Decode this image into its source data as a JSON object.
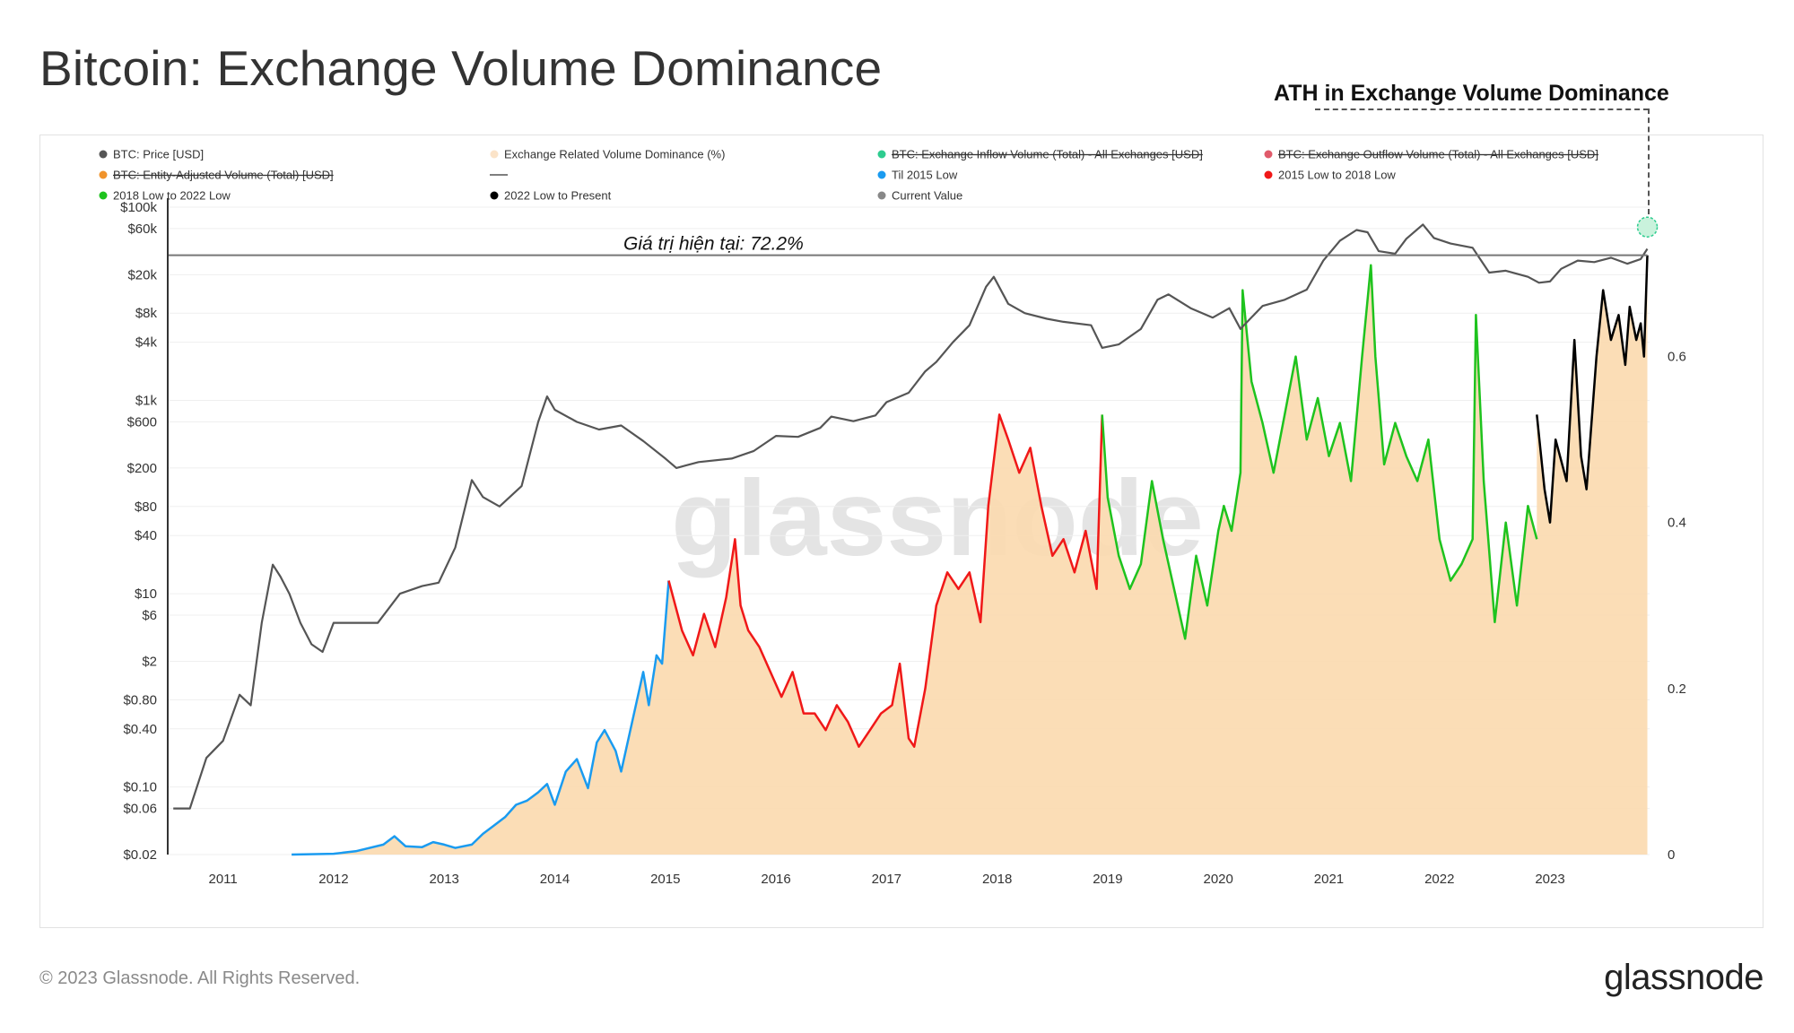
{
  "page": {
    "title": "Bitcoin: Exchange Volume Dominance",
    "ath_label": "ATH in Exchange Volume Dominance",
    "copyright": "© 2023 Glassnode. All Rights Reserved.",
    "logo": "glassnode",
    "watermark": "glassnode"
  },
  "chart_data": {
    "type": "line",
    "legend": [
      {
        "label": "BTC: Price [USD]",
        "color": "#555555",
        "struck": false
      },
      {
        "label": "Exchange Related Volume Dominance (%)",
        "color": "#fbe3c8",
        "struck": false
      },
      {
        "label": "BTC: Exchange Inflow Volume (Total) - All Exchanges [USD]",
        "color": "#2ecc8f",
        "struck": true
      },
      {
        "label": "BTC: Exchange Outflow Volume (Total) - All Exchanges [USD]",
        "color": "#e05a6a",
        "struck": true
      },
      {
        "label": "BTC: Entity-Adjusted Volume (Total) [USD]",
        "color": "#f0932b",
        "struck": true
      },
      {
        "label": "",
        "color": "#555555",
        "struck": false,
        "marker": "line"
      },
      {
        "label": "Til 2015 Low",
        "color": "#1a9bf0",
        "struck": false
      },
      {
        "label": "2015 Low to 2018 Low",
        "color": "#f01818",
        "struck": false
      },
      {
        "label": "2018 Low to 2022 Low",
        "color": "#1ec31e",
        "struck": false
      },
      {
        "label": "2022 Low to Present",
        "color": "#000000",
        "struck": false
      },
      {
        "label": "Current Value",
        "color": "#888888",
        "struck": false
      }
    ],
    "x_ticks": [
      "2011",
      "2012",
      "2013",
      "2014",
      "2015",
      "2016",
      "2017",
      "2018",
      "2019",
      "2020",
      "2021",
      "2022",
      "2023"
    ],
    "x_range": [
      2010.5,
      2023.9
    ],
    "y_left_ticks": [
      "$100k",
      "$60k",
      "$20k",
      "$8k",
      "$4k",
      "$1k",
      "$600",
      "$200",
      "$80",
      "$40",
      "$10",
      "$6",
      "$2",
      "$0.80",
      "$0.40",
      "$0.10",
      "$0.06",
      "$0.02"
    ],
    "y_left_range": [
      0.02,
      100000
    ],
    "y_left_scale": "log",
    "y_right_ticks": [
      "0",
      "0.2",
      "0.4",
      "0.6"
    ],
    "y_right_range": [
      0,
      0.78
    ],
    "current_value_label": "Giá trị hiện tại: 72.2%",
    "current_value": 0.722,
    "ath_marker": {
      "x": 2023.88,
      "y": 0.756
    },
    "price_series": {
      "name": "BTC: Price [USD]",
      "color": "#555555",
      "points": [
        [
          2010.55,
          0.06
        ],
        [
          2010.7,
          0.06
        ],
        [
          2010.85,
          0.2
        ],
        [
          2011.0,
          0.3
        ],
        [
          2011.15,
          0.9
        ],
        [
          2011.25,
          0.7
        ],
        [
          2011.35,
          5
        ],
        [
          2011.45,
          20
        ],
        [
          2011.52,
          15
        ],
        [
          2011.6,
          10
        ],
        [
          2011.7,
          5
        ],
        [
          2011.8,
          3
        ],
        [
          2011.9,
          2.5
        ],
        [
          2012.0,
          5
        ],
        [
          2012.2,
          5
        ],
        [
          2012.4,
          5
        ],
        [
          2012.6,
          10
        ],
        [
          2012.8,
          12
        ],
        [
          2012.95,
          13
        ],
        [
          2013.1,
          30
        ],
        [
          2013.25,
          150
        ],
        [
          2013.35,
          100
        ],
        [
          2013.5,
          80
        ],
        [
          2013.7,
          130
        ],
        [
          2013.85,
          600
        ],
        [
          2013.93,
          1100
        ],
        [
          2014.0,
          800
        ],
        [
          2014.2,
          600
        ],
        [
          2014.4,
          500
        ],
        [
          2014.6,
          550
        ],
        [
          2014.8,
          380
        ],
        [
          2015.0,
          250
        ],
        [
          2015.1,
          200
        ],
        [
          2015.3,
          230
        ],
        [
          2015.6,
          250
        ],
        [
          2015.8,
          300
        ],
        [
          2016.0,
          430
        ],
        [
          2016.2,
          420
        ],
        [
          2016.4,
          520
        ],
        [
          2016.5,
          680
        ],
        [
          2016.7,
          610
        ],
        [
          2016.9,
          700
        ],
        [
          2017.0,
          960
        ],
        [
          2017.2,
          1200
        ],
        [
          2017.35,
          2000
        ],
        [
          2017.45,
          2500
        ],
        [
          2017.6,
          4000
        ],
        [
          2017.75,
          6000
        ],
        [
          2017.9,
          15000
        ],
        [
          2017.97,
          19000
        ],
        [
          2018.1,
          10000
        ],
        [
          2018.25,
          8000
        ],
        [
          2018.45,
          7000
        ],
        [
          2018.6,
          6500
        ],
        [
          2018.85,
          6000
        ],
        [
          2018.95,
          3500
        ],
        [
          2019.1,
          3800
        ],
        [
          2019.3,
          5500
        ],
        [
          2019.45,
          11000
        ],
        [
          2019.55,
          12500
        ],
        [
          2019.75,
          9000
        ],
        [
          2019.95,
          7200
        ],
        [
          2020.1,
          9000
        ],
        [
          2020.2,
          5500
        ],
        [
          2020.4,
          9500
        ],
        [
          2020.6,
          11000
        ],
        [
          2020.8,
          14000
        ],
        [
          2020.95,
          28000
        ],
        [
          2021.1,
          45000
        ],
        [
          2021.25,
          58000
        ],
        [
          2021.35,
          55000
        ],
        [
          2021.45,
          35000
        ],
        [
          2021.6,
          33000
        ],
        [
          2021.7,
          47000
        ],
        [
          2021.85,
          66000
        ],
        [
          2021.95,
          48000
        ],
        [
          2022.1,
          42000
        ],
        [
          2022.3,
          38000
        ],
        [
          2022.45,
          21000
        ],
        [
          2022.6,
          22000
        ],
        [
          2022.8,
          19000
        ],
        [
          2022.9,
          16500
        ],
        [
          2023.0,
          17000
        ],
        [
          2023.1,
          23000
        ],
        [
          2023.25,
          28000
        ],
        [
          2023.4,
          27000
        ],
        [
          2023.55,
          30000
        ],
        [
          2023.7,
          26000
        ],
        [
          2023.82,
          29000
        ],
        [
          2023.88,
          37000
        ]
      ]
    },
    "dominance_series": [
      {
        "name": "Til 2015 Low",
        "color": "#1a9bf0",
        "points": [
          [
            2011.62,
            0.0
          ],
          [
            2012.0,
            0.001
          ],
          [
            2012.2,
            0.004
          ],
          [
            2012.45,
            0.012
          ],
          [
            2012.55,
            0.022
          ],
          [
            2012.65,
            0.01
          ],
          [
            2012.8,
            0.009
          ],
          [
            2012.9,
            0.015
          ],
          [
            2013.0,
            0.012
          ],
          [
            2013.1,
            0.008
          ],
          [
            2013.25,
            0.012
          ],
          [
            2013.35,
            0.025
          ],
          [
            2013.45,
            0.035
          ],
          [
            2013.55,
            0.045
          ],
          [
            2013.65,
            0.06
          ],
          [
            2013.75,
            0.065
          ],
          [
            2013.85,
            0.075
          ],
          [
            2013.93,
            0.085
          ],
          [
            2014.0,
            0.06
          ],
          [
            2014.1,
            0.1
          ],
          [
            2014.2,
            0.115
          ],
          [
            2014.3,
            0.08
          ],
          [
            2014.38,
            0.135
          ],
          [
            2014.45,
            0.15
          ],
          [
            2014.55,
            0.125
          ],
          [
            2014.6,
            0.1
          ],
          [
            2014.7,
            0.16
          ],
          [
            2014.8,
            0.22
          ],
          [
            2014.85,
            0.18
          ],
          [
            2014.92,
            0.24
          ],
          [
            2014.97,
            0.23
          ],
          [
            2015.03,
            0.33
          ]
        ]
      },
      {
        "name": "2015 Low to 2018 Low",
        "color": "#f01818",
        "points": [
          [
            2015.03,
            0.33
          ],
          [
            2015.15,
            0.27
          ],
          [
            2015.25,
            0.24
          ],
          [
            2015.35,
            0.29
          ],
          [
            2015.45,
            0.25
          ],
          [
            2015.55,
            0.31
          ],
          [
            2015.63,
            0.38
          ],
          [
            2015.68,
            0.3
          ],
          [
            2015.75,
            0.27
          ],
          [
            2015.85,
            0.25
          ],
          [
            2015.95,
            0.22
          ],
          [
            2016.05,
            0.19
          ],
          [
            2016.15,
            0.22
          ],
          [
            2016.25,
            0.17
          ],
          [
            2016.35,
            0.17
          ],
          [
            2016.45,
            0.15
          ],
          [
            2016.55,
            0.18
          ],
          [
            2016.65,
            0.16
          ],
          [
            2016.75,
            0.13
          ],
          [
            2016.85,
            0.15
          ],
          [
            2016.95,
            0.17
          ],
          [
            2017.05,
            0.18
          ],
          [
            2017.12,
            0.23
          ],
          [
            2017.2,
            0.14
          ],
          [
            2017.25,
            0.13
          ],
          [
            2017.35,
            0.2
          ],
          [
            2017.45,
            0.3
          ],
          [
            2017.55,
            0.34
          ],
          [
            2017.65,
            0.32
          ],
          [
            2017.75,
            0.34
          ],
          [
            2017.85,
            0.28
          ],
          [
            2017.92,
            0.42
          ],
          [
            2018.02,
            0.53
          ],
          [
            2018.1,
            0.5
          ],
          [
            2018.2,
            0.46
          ],
          [
            2018.3,
            0.49
          ],
          [
            2018.4,
            0.42
          ],
          [
            2018.5,
            0.36
          ],
          [
            2018.6,
            0.38
          ],
          [
            2018.7,
            0.34
          ],
          [
            2018.8,
            0.39
          ],
          [
            2018.9,
            0.32
          ],
          [
            2018.95,
            0.53
          ]
        ]
      },
      {
        "name": "2018 Low to 2022 Low",
        "color": "#1ec31e",
        "points": [
          [
            2018.95,
            0.53
          ],
          [
            2019.0,
            0.43
          ],
          [
            2019.1,
            0.36
          ],
          [
            2019.2,
            0.32
          ],
          [
            2019.3,
            0.35
          ],
          [
            2019.4,
            0.45
          ],
          [
            2019.5,
            0.38
          ],
          [
            2019.6,
            0.32
          ],
          [
            2019.7,
            0.26
          ],
          [
            2019.8,
            0.36
          ],
          [
            2019.9,
            0.3
          ],
          [
            2020.0,
            0.39
          ],
          [
            2020.05,
            0.42
          ],
          [
            2020.12,
            0.39
          ],
          [
            2020.2,
            0.46
          ],
          [
            2020.22,
            0.68
          ],
          [
            2020.3,
            0.57
          ],
          [
            2020.4,
            0.52
          ],
          [
            2020.5,
            0.46
          ],
          [
            2020.6,
            0.53
          ],
          [
            2020.7,
            0.6
          ],
          [
            2020.8,
            0.5
          ],
          [
            2020.9,
            0.55
          ],
          [
            2021.0,
            0.48
          ],
          [
            2021.1,
            0.52
          ],
          [
            2021.2,
            0.45
          ],
          [
            2021.3,
            0.6
          ],
          [
            2021.38,
            0.71
          ],
          [
            2021.42,
            0.6
          ],
          [
            2021.5,
            0.47
          ],
          [
            2021.6,
            0.52
          ],
          [
            2021.7,
            0.48
          ],
          [
            2021.8,
            0.45
          ],
          [
            2021.9,
            0.5
          ],
          [
            2022.0,
            0.38
          ],
          [
            2022.1,
            0.33
          ],
          [
            2022.2,
            0.35
          ],
          [
            2022.3,
            0.38
          ],
          [
            2022.33,
            0.65
          ],
          [
            2022.4,
            0.45
          ],
          [
            2022.5,
            0.28
          ],
          [
            2022.6,
            0.4
          ],
          [
            2022.7,
            0.3
          ],
          [
            2022.8,
            0.42
          ],
          [
            2022.88,
            0.38
          ]
        ]
      },
      {
        "name": "2022 Low to Present",
        "color": "#000000",
        "points": [
          [
            2022.88,
            0.53
          ],
          [
            2022.95,
            0.44
          ],
          [
            2023.0,
            0.4
          ],
          [
            2023.05,
            0.5
          ],
          [
            2023.15,
            0.45
          ],
          [
            2023.22,
            0.62
          ],
          [
            2023.28,
            0.48
          ],
          [
            2023.33,
            0.44
          ],
          [
            2023.42,
            0.6
          ],
          [
            2023.48,
            0.68
          ],
          [
            2023.55,
            0.62
          ],
          [
            2023.62,
            0.65
          ],
          [
            2023.68,
            0.59
          ],
          [
            2023.72,
            0.66
          ],
          [
            2023.78,
            0.62
          ],
          [
            2023.82,
            0.64
          ],
          [
            2023.85,
            0.6
          ],
          [
            2023.88,
            0.722
          ]
        ]
      }
    ]
  }
}
